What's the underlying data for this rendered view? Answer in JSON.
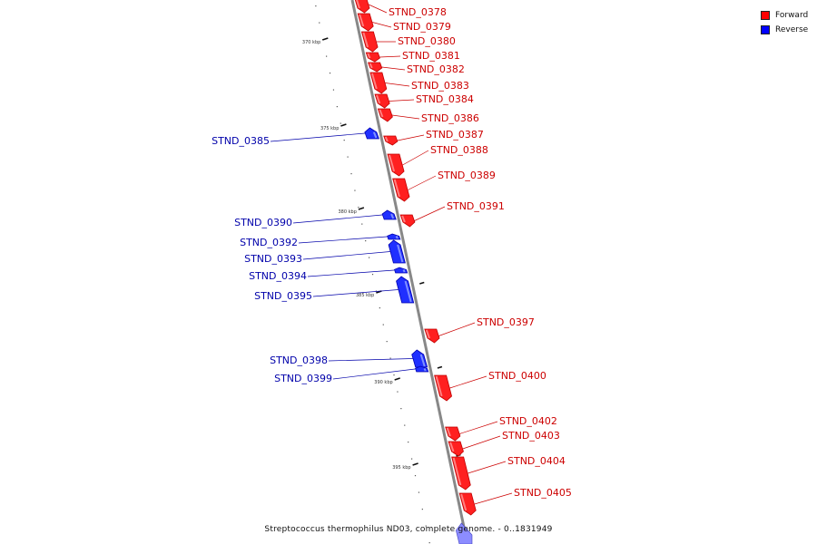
{
  "caption": "Streptococcus thermophilus ND03, complete genome. - 0..1831949",
  "legend": {
    "forward_label": "Forward",
    "reverse_label": "Reverse",
    "forward_color": "#ff0000",
    "reverse_color": "#0000ff"
  },
  "colors": {
    "backbone": "#888888",
    "forward_label": "#cc0000",
    "reverse_label": "#0000aa"
  },
  "ticks": [
    "370 kbp",
    "375 kbp",
    "380 kbp",
    "385 kbp",
    "390 kbp",
    "395 kbp"
  ],
  "genes": [
    {
      "name": "STND_0378",
      "strand": "forward"
    },
    {
      "name": "STND_0379",
      "strand": "forward"
    },
    {
      "name": "STND_0380",
      "strand": "forward"
    },
    {
      "name": "STND_0381",
      "strand": "forward"
    },
    {
      "name": "STND_0382",
      "strand": "forward"
    },
    {
      "name": "STND_0383",
      "strand": "forward"
    },
    {
      "name": "STND_0384",
      "strand": "forward"
    },
    {
      "name": "STND_0385",
      "strand": "reverse"
    },
    {
      "name": "STND_0386",
      "strand": "forward"
    },
    {
      "name": "STND_0387",
      "strand": "forward"
    },
    {
      "name": "STND_0388",
      "strand": "forward"
    },
    {
      "name": "STND_0389",
      "strand": "forward"
    },
    {
      "name": "STND_0390",
      "strand": "reverse"
    },
    {
      "name": "STND_0391",
      "strand": "forward"
    },
    {
      "name": "STND_0392",
      "strand": "reverse"
    },
    {
      "name": "STND_0393",
      "strand": "reverse"
    },
    {
      "name": "STND_0394",
      "strand": "reverse"
    },
    {
      "name": "STND_0395",
      "strand": "reverse"
    },
    {
      "name": "STND_0397",
      "strand": "forward"
    },
    {
      "name": "STND_0398",
      "strand": "reverse"
    },
    {
      "name": "STND_0399",
      "strand": "reverse"
    },
    {
      "name": "STND_0400",
      "strand": "forward"
    },
    {
      "name": "STND_0402",
      "strand": "forward"
    },
    {
      "name": "STND_0403",
      "strand": "forward"
    },
    {
      "name": "STND_0404",
      "strand": "forward"
    },
    {
      "name": "STND_0405",
      "strand": "forward"
    }
  ]
}
